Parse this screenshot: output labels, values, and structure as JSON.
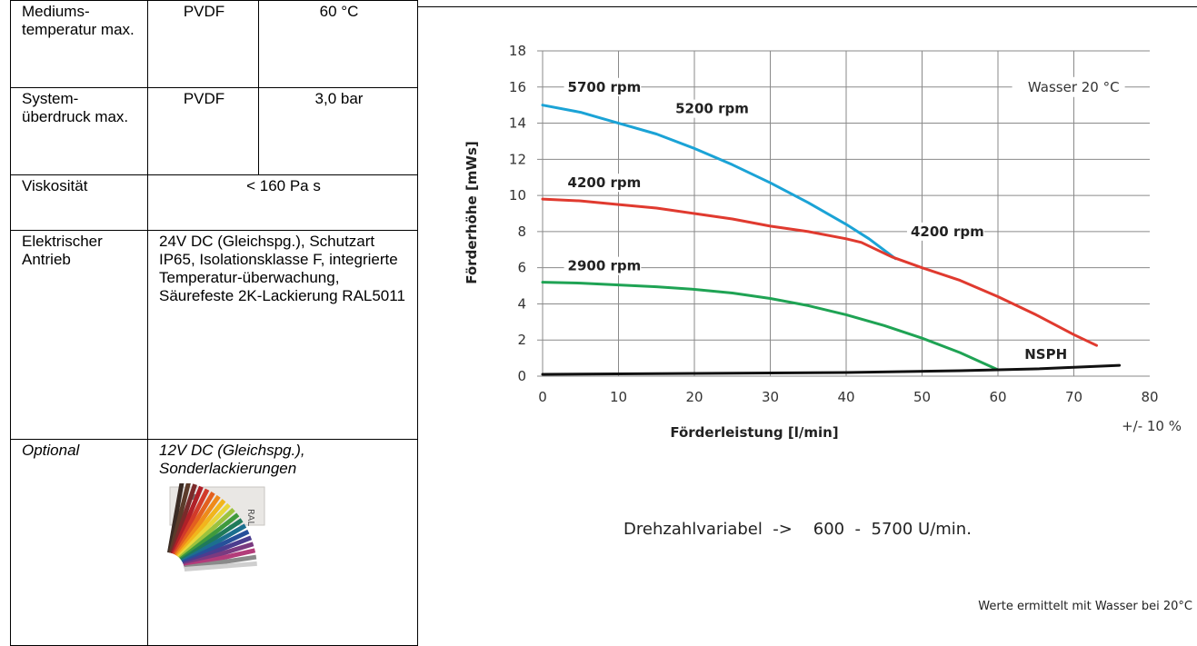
{
  "spec_table": {
    "medium_temp_label": "Mediums-temperatur max.",
    "medium_temp_material": "PVDF",
    "medium_temp_value": "60 °C",
    "system_pressure_label": "System-überdruck max.",
    "system_pressure_material": "PVDF",
    "system_pressure_value": "3,0 bar",
    "viscosity_label": "Viskosität",
    "viscosity_value": "< 160 Pa s",
    "drive_label": "Elektrischer Antrieb",
    "drive_value": "24V DC (Gleichspg.), Schutzart IP65, Isolationsklasse F, integrierte Temperatur-überwachung, Säurefeste 2K-Lackierung RAL5011",
    "optional_label": "Optional",
    "optional_value": "12V DC (Gleichspg.), Sonderlackierungen",
    "ral_deck_text": "RAL"
  },
  "chart_data": {
    "type": "line",
    "xlabel": "Förderleistung [l/min]",
    "ylabel": "Förderhöhe [mWs]",
    "xlim": [
      0,
      80
    ],
    "ylim": [
      0,
      18
    ],
    "x_ticks": [
      0,
      10,
      20,
      30,
      40,
      50,
      60,
      70,
      80
    ],
    "y_ticks": [
      0,
      2,
      4,
      6,
      8,
      10,
      12,
      14,
      16,
      18
    ],
    "grid": true,
    "annotation_water": "Wasser 20 °C",
    "annotation_tolerance": "+/- 10 %",
    "series": [
      {
        "name": "5700 rpm",
        "color": "#1ba3d6",
        "points": [
          [
            0,
            15.0
          ],
          [
            5,
            14.6
          ],
          [
            10,
            14.0
          ],
          [
            15,
            13.4
          ],
          [
            20,
            12.6
          ],
          [
            25,
            11.7
          ],
          [
            30,
            10.7
          ],
          [
            35,
            9.6
          ],
          [
            40,
            8.4
          ],
          [
            43,
            7.6
          ],
          [
            46.5,
            6.5
          ]
        ]
      },
      {
        "name": "4200 rpm",
        "color": "#e03a2f",
        "points": [
          [
            0,
            9.8
          ],
          [
            5,
            9.7
          ],
          [
            10,
            9.5
          ],
          [
            15,
            9.3
          ],
          [
            20,
            9.0
          ],
          [
            25,
            8.7
          ],
          [
            30,
            8.3
          ],
          [
            35,
            8.0
          ],
          [
            40,
            7.6
          ],
          [
            42,
            7.4
          ],
          [
            46,
            6.6
          ],
          [
            50,
            6.0
          ],
          [
            55,
            5.3
          ],
          [
            60,
            4.4
          ],
          [
            65,
            3.4
          ],
          [
            70,
            2.3
          ],
          [
            73,
            1.7
          ]
        ]
      },
      {
        "name": "2900 rpm",
        "color": "#1fa354",
        "points": [
          [
            0,
            5.2
          ],
          [
            5,
            5.15
          ],
          [
            10,
            5.05
          ],
          [
            15,
            4.95
          ],
          [
            20,
            4.8
          ],
          [
            25,
            4.6
          ],
          [
            30,
            4.3
          ],
          [
            35,
            3.9
          ],
          [
            40,
            3.4
          ],
          [
            45,
            2.8
          ],
          [
            50,
            2.1
          ],
          [
            55,
            1.3
          ],
          [
            60,
            0.35
          ]
        ]
      },
      {
        "name": "NSPH",
        "color": "#111111",
        "points": [
          [
            0,
            0.1
          ],
          [
            20,
            0.15
          ],
          [
            40,
            0.2
          ],
          [
            55,
            0.3
          ],
          [
            65,
            0.4
          ],
          [
            76,
            0.6
          ]
        ]
      }
    ],
    "labels": [
      {
        "text": "5700 rpm",
        "x": 3.3,
        "y": 15.8
      },
      {
        "text": "5200 rpm",
        "x": 17.5,
        "y": 14.6
      },
      {
        "text": "4200 rpm",
        "x": 3.3,
        "y": 10.5
      },
      {
        "text": "4200 rpm",
        "x": 48.5,
        "y": 7.8
      },
      {
        "text": "2900 rpm",
        "x": 3.3,
        "y": 5.9
      },
      {
        "text": "NSPH",
        "x": 63.5,
        "y": 1.0
      }
    ]
  },
  "speed_range": "Drehzahlvariabel  ->    600  -  5700 U/min.",
  "footnote": "Werte ermittelt mit Wasser bei 20°C"
}
